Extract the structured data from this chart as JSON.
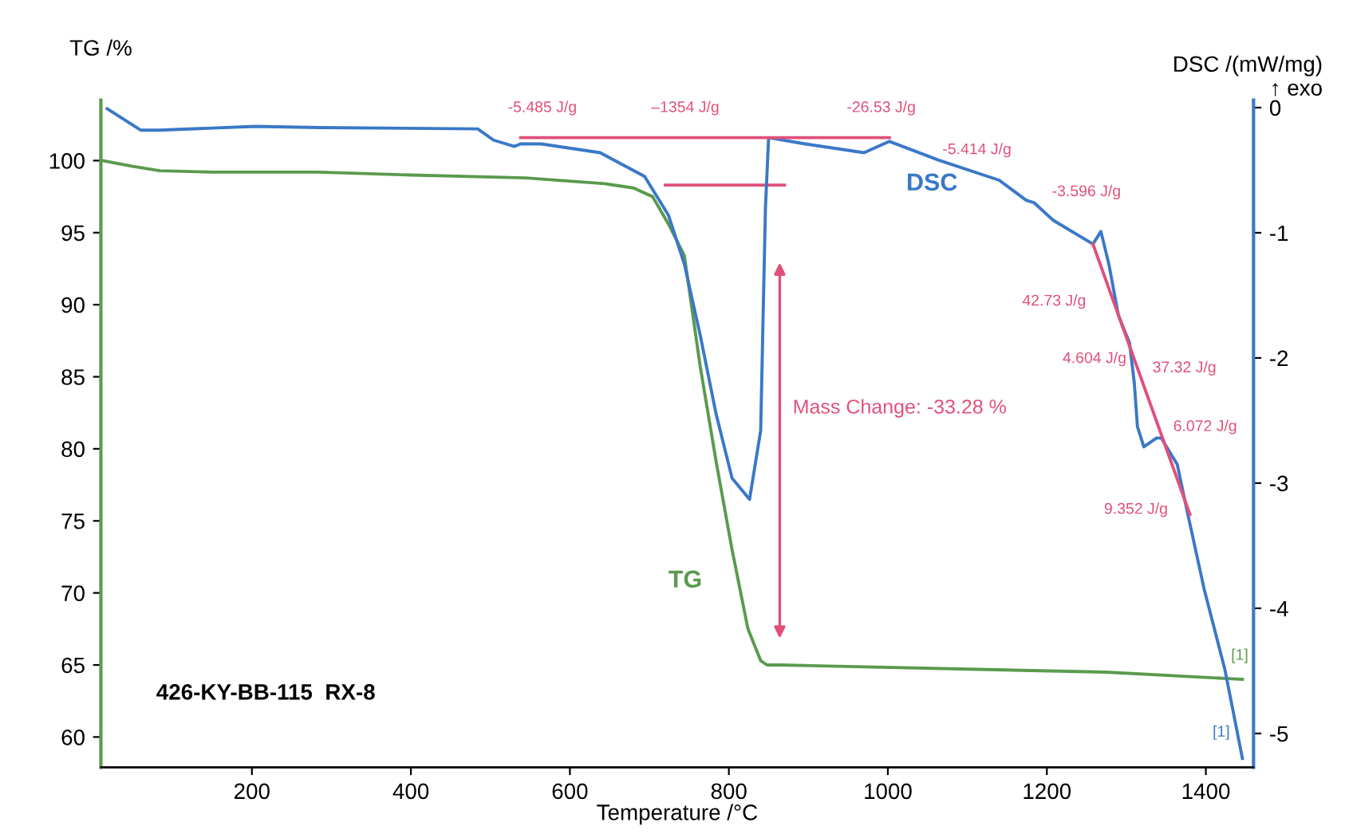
{
  "chart_data": {
    "type": "line",
    "xlabel": "Temperature /°C",
    "ylabel": "TG /%",
    "y2label": "DSC /(mW/mg)\n↑ exo",
    "xlim": [
      10,
      1460
    ],
    "xticks": [
      200,
      400,
      600,
      800,
      1000,
      1200,
      1400
    ],
    "ylim": [
      57.9,
      104.2
    ],
    "yticks": [
      60,
      65,
      70,
      75,
      80,
      85,
      90,
      95,
      100
    ],
    "y2lim": [
      -5.27,
      0.06
    ],
    "y2ticks": [
      0,
      -1,
      -2,
      -3,
      -4,
      -5
    ],
    "grid": false,
    "legend": false,
    "series": [
      {
        "color": "#5a9a4e",
        "x": [
          12,
          50,
          84,
          150,
          284,
          400,
          544,
          644,
          680,
          704,
          724,
          744,
          764,
          784,
          804,
          824,
          840,
          848,
          864,
          1274,
          1446
        ],
        "values": [
          100.0,
          99.6,
          99.3,
          99.2,
          99.2,
          99.0,
          98.8,
          98.4,
          98.1,
          97.5,
          95.6,
          93.4,
          85.7,
          79.1,
          73.0,
          67.5,
          65.3,
          65.0,
          65.0,
          64.5,
          64.0
        ]
      },
      {
        "color": "#3a78c8",
        "axis": "y2",
        "x": [
          18,
          60,
          84,
          204,
          284,
          484,
          504,
          530,
          538,
          564,
          638,
          694,
          724,
          744,
          764,
          784,
          804,
          826,
          840,
          846,
          850,
          896,
          970,
          1002,
          1064,
          1140,
          1174,
          1184,
          1208,
          1258,
          1268,
          1278,
          1290,
          1304,
          1310,
          1314,
          1322,
          1338,
          1344,
          1364,
          1376,
          1398,
          1424,
          1446
        ],
        "values": [
          -0.01,
          -0.18,
          -0.18,
          -0.15,
          -0.16,
          -0.17,
          -0.26,
          -0.31,
          -0.29,
          -0.29,
          -0.36,
          -0.55,
          -0.86,
          -1.25,
          -1.82,
          -2.45,
          -2.96,
          -3.13,
          -2.58,
          -0.8,
          -0.24,
          -0.29,
          -0.36,
          -0.27,
          -0.42,
          -0.58,
          -0.74,
          -0.76,
          -0.9,
          -1.09,
          -0.99,
          -1.25,
          -1.66,
          -1.88,
          -2.2,
          -2.55,
          -2.71,
          -2.64,
          -2.64,
          -2.85,
          -3.21,
          -3.85,
          -4.49,
          -5.2
        ]
      },
      {
        "color": "#e0507a",
        "x": [
          720,
          870
        ],
        "values": [
          98.3,
          98.3
        ]
      },
      {
        "color": "#e0507a",
        "axis": "y2",
        "x": [
          538,
          1002
        ],
        "values": [
          -0.24,
          -0.24
        ]
      },
      {
        "color": "#e0507a",
        "axis": "y2",
        "x": [
          1258,
          1380
        ],
        "values": [
          -1.09,
          -3.25
        ]
      }
    ],
    "annotations": [
      "-5.485 J/g",
      "–1354 J/g",
      "-26.53 J/g",
      "-5.414 J/g",
      "-3.596 J/g",
      "42.73 J/g",
      "4.604 J/g",
      "37.32 J/g",
      "6.072 J/g",
      "9.352 J/g",
      "DSC",
      "TG",
      "[1]",
      "[1]",
      "426-KY-BB-115  RX-8",
      "Mass Change: -33.28 %"
    ]
  }
}
